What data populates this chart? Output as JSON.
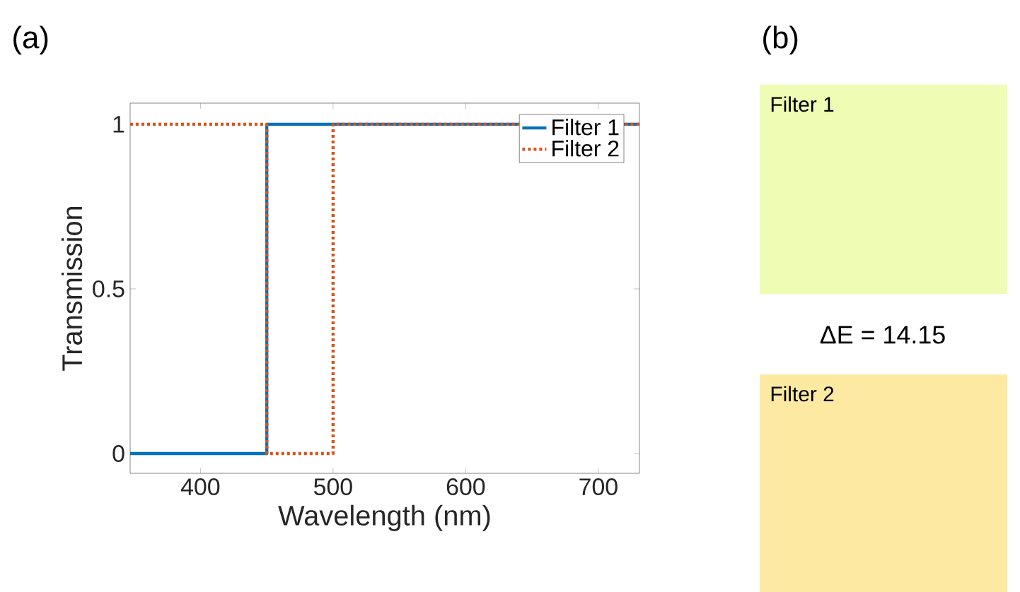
{
  "chart_data": [
    {
      "type": "line",
      "title": "(a)",
      "xlabel": "Wavelength (nm)",
      "ylabel": "Transmission",
      "xlim": [
        347,
        731
      ],
      "ylim": [
        -0.06,
        1.064
      ],
      "xticks": [
        400,
        500,
        600,
        700
      ],
      "yticks": [
        0,
        0.5,
        1
      ],
      "legend": "top right",
      "grid": false,
      "series": [
        {
          "name": "Filter 1",
          "color": "#0072bd",
          "line_style": "solid",
          "x": [
            347,
            450,
            450,
            731
          ],
          "values": [
            0,
            0,
            1,
            1
          ]
        },
        {
          "name": "Filter 2",
          "color": "#d95319",
          "line_style": "dotted",
          "x": [
            347,
            450,
            450,
            500,
            500,
            731
          ],
          "values": [
            1,
            1,
            0,
            0,
            1,
            1
          ]
        }
      ]
    },
    {
      "type": "other",
      "title": "(b)",
      "categories": [
        "Filter 1",
        "Filter 2"
      ],
      "colors": [
        "#effcb3",
        "#fde9a2"
      ],
      "annotations": [
        "ΔE = 14.15"
      ]
    }
  ]
}
